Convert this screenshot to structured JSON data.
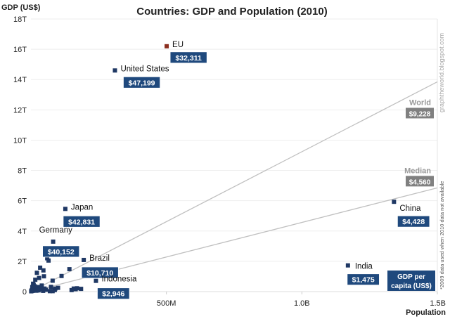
{
  "chart_data": {
    "type": "scatter",
    "title": "Countries: GDP and Population (2010)",
    "ylabel": "GDP (US$)",
    "xlabel": "Population",
    "xlim": [
      0,
      1500000000
    ],
    "ylim": [
      0,
      18000000000000
    ],
    "x_ticks": [
      {
        "value": 500000000,
        "label": "500M"
      },
      {
        "value": 1000000000,
        "label": "1.0B"
      },
      {
        "value": 1500000000,
        "label": "1.5B"
      }
    ],
    "y_ticks": [
      {
        "value": 0,
        "label": "0"
      },
      {
        "value": 2000000000000.0,
        "label": "2T"
      },
      {
        "value": 4000000000000.0,
        "label": "4T"
      },
      {
        "value": 6000000000000.0,
        "label": "6T"
      },
      {
        "value": 8000000000000.0,
        "label": "8T"
      },
      {
        "value": 10000000000000.0,
        "label": "10T"
      },
      {
        "value": 12000000000000.0,
        "label": "12T"
      },
      {
        "value": 14000000000000.0,
        "label": "14T"
      },
      {
        "value": 16000000000000.0,
        "label": "16T"
      },
      {
        "value": 18000000000000.0,
        "label": "18T"
      }
    ],
    "grid": "horizontal",
    "colors": {
      "point": "#1f3864",
      "eu_point": "#8b2e1e",
      "label_box": "#1f497d",
      "line": "#c0c0c0",
      "ref_box": "#808080"
    },
    "labeled_points": [
      {
        "name": "EU",
        "population": 501000000,
        "gdp": 16200000000000,
        "per_capita": "$32,311",
        "highlight": true
      },
      {
        "name": "United States",
        "population": 310000000,
        "gdp": 14600000000000,
        "per_capita": "$47,199"
      },
      {
        "name": "Japan",
        "population": 127000000,
        "gdp": 5460000000000,
        "per_capita": "$42,831"
      },
      {
        "name": "Germany",
        "population": 82000000,
        "gdp": 3300000000000,
        "per_capita": "$40,152"
      },
      {
        "name": "Brazil",
        "population": 195000000,
        "gdp": 2090000000000,
        "per_capita": "$10,710"
      },
      {
        "name": "Indonesia",
        "population": 240000000,
        "gdp": 710000000000,
        "per_capita": "$2,946"
      },
      {
        "name": "China",
        "population": 1340000000,
        "gdp": 5930000000000,
        "per_capita": "$4,428"
      },
      {
        "name": "India",
        "population": 1170000000,
        "gdp": 1730000000000,
        "per_capita": "$1,475"
      }
    ],
    "other_points": [
      [
        62000000,
        2560000000000
      ],
      [
        60000000,
        2200000000000
      ],
      [
        65000000,
        2050000000000
      ],
      [
        34000000,
        1580000000000
      ],
      [
        46000000,
        1400000000000
      ],
      [
        142000000,
        1480000000000
      ],
      [
        113000000,
        1030000000000
      ],
      [
        22000000,
        1240000000000
      ],
      [
        48000000,
        1010000000000
      ],
      [
        74000000,
        310000000000
      ],
      [
        30000000,
        900000000000
      ],
      [
        16000000,
        780000000000
      ],
      [
        10000000,
        450000000000
      ],
      [
        40000000,
        400000000000
      ],
      [
        5000000,
        300000000000
      ],
      [
        8000000,
        520000000000
      ],
      [
        25000000,
        300000000000
      ],
      [
        18000000,
        220000000000
      ],
      [
        12000000,
        180000000000
      ],
      [
        3000000,
        100000000000
      ],
      [
        6000000,
        50000000000
      ],
      [
        35000000,
        150000000000
      ],
      [
        50000000,
        200000000000
      ],
      [
        88000000,
        100000000000
      ],
      [
        80000000,
        720000000000
      ],
      [
        150000000,
        100000000000
      ],
      [
        165000000,
        160000000000
      ],
      [
        158000000,
        200000000000
      ],
      [
        185000000,
        180000000000
      ],
      [
        170000000,
        220000000000
      ],
      [
        100000000,
        250000000000
      ],
      [
        90000000,
        200000000000
      ],
      [
        1000000,
        20000000000
      ],
      [
        2000000,
        40000000000
      ],
      [
        20000000,
        60000000000
      ],
      [
        28000000,
        80000000000
      ],
      [
        45000000,
        50000000000
      ],
      [
        70000000,
        30000000000
      ],
      [
        14000000,
        350000000000
      ],
      [
        55000000,
        120000000000
      ],
      [
        80000000,
        30000000000
      ]
    ],
    "reference_lines": [
      {
        "name": "World",
        "per_capita": "$9,228",
        "y_at_xmax": 13850000000000
      },
      {
        "name": "Median",
        "per_capita": "$4,560",
        "y_at_xmax": 6850000000000
      }
    ],
    "legend_box": "GDP per capita (US$)",
    "legend_box_lines": [
      "GDP per",
      "capita (US$)"
    ],
    "watermark": "graphtheworld.blogspot.com",
    "footnote": "*2009 data used when 2010 data not available"
  }
}
